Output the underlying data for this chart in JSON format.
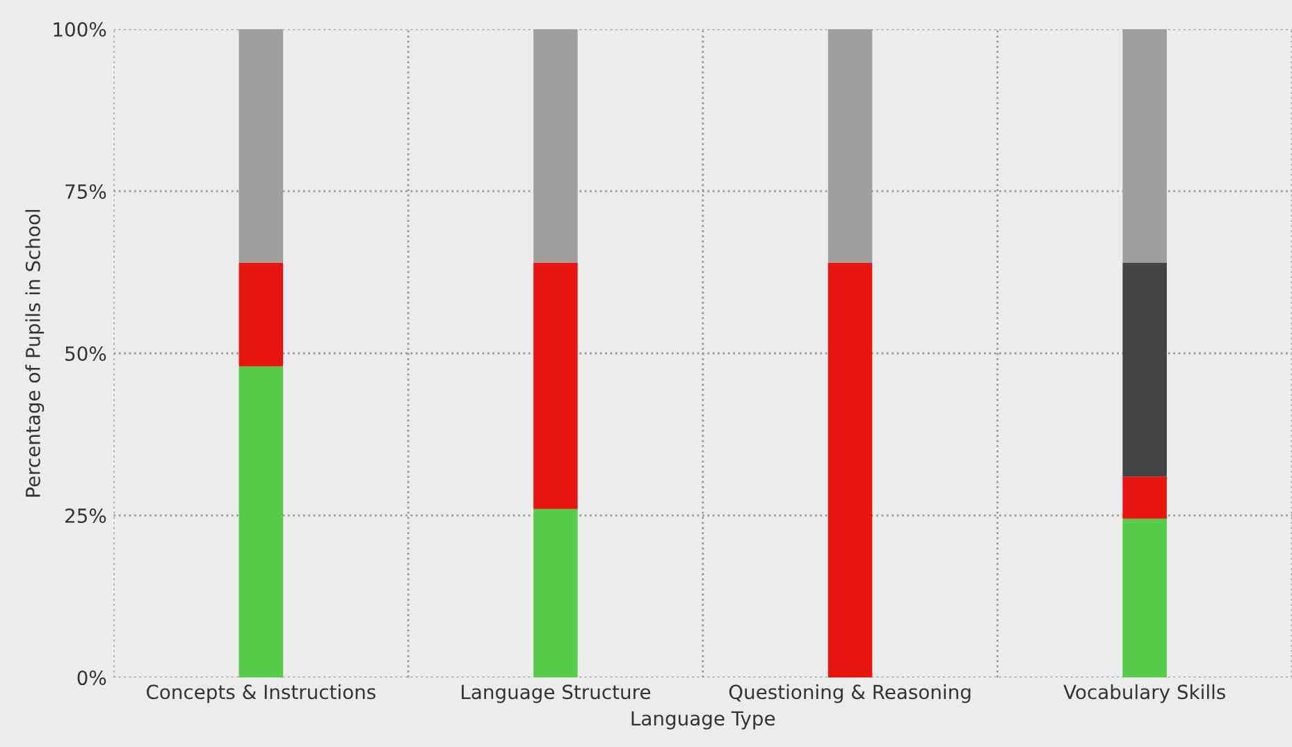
{
  "chart_data": {
    "type": "bar",
    "stacked": true,
    "xlabel": "Language Type",
    "ylabel": "Percentage of Pupils in School",
    "categories": [
      "Concepts & Instructions",
      "Language Structure",
      "Questioning & Reasoning",
      "Vocabulary Skills"
    ],
    "series": [
      {
        "color": "#57cc4a",
        "values": [
          48,
          26,
          0,
          24.5
        ]
      },
      {
        "color": "#e8140f",
        "values": [
          16,
          38,
          64,
          6.5
        ]
      },
      {
        "color": "#444444",
        "values": [
          0,
          0,
          0,
          33
        ]
      },
      {
        "color": "#a09f9d",
        "values": [
          36,
          36,
          36,
          36
        ]
      }
    ],
    "ylim": [
      0,
      100
    ],
    "yticks": [
      {
        "value": 0,
        "label": "0%"
      },
      {
        "value": 25,
        "label": "25%"
      },
      {
        "value": 50,
        "label": "50%"
      },
      {
        "value": 75,
        "label": "75%"
      },
      {
        "value": 100,
        "label": "100%"
      }
    ],
    "grid": true
  }
}
